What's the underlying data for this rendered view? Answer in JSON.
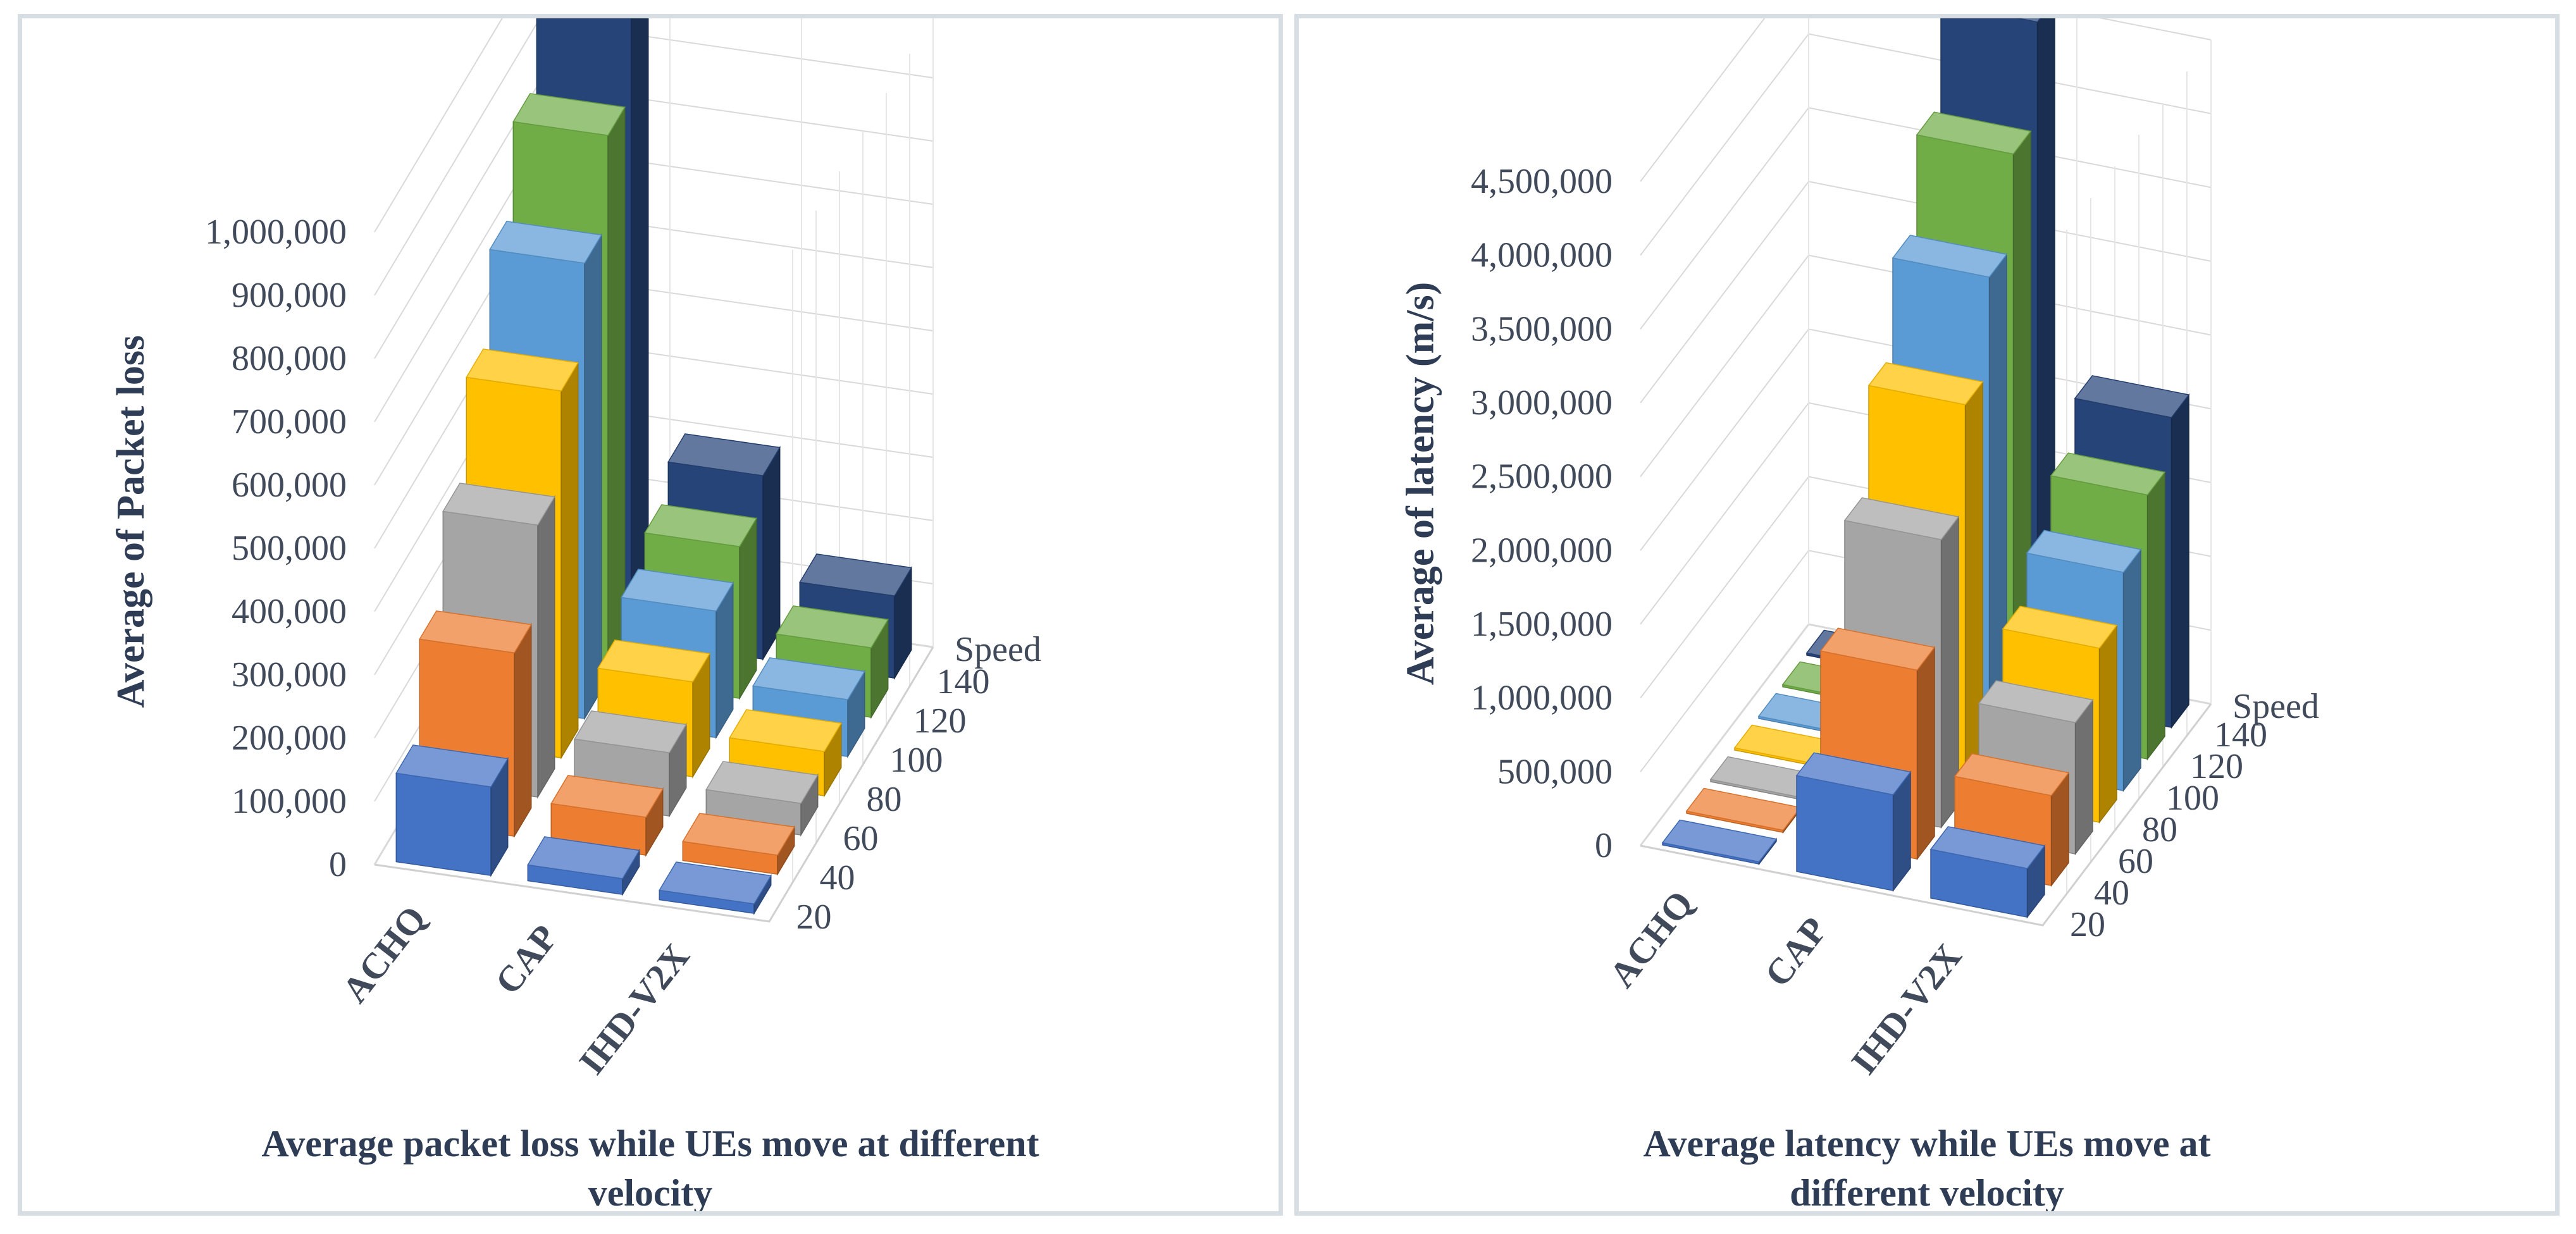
{
  "charts": [
    {
      "id": "left",
      "caption_line1": "Average packet loss while UEs move at different",
      "caption_line2": "velocity",
      "ylabel": "Average of Packet loss"
    },
    {
      "id": "right",
      "caption_line1": "Average latency while UEs move at",
      "caption_line2": "different velocity",
      "ylabel": "Average of latency (m/s)"
    }
  ],
  "chart_data": [
    {
      "type": "bar",
      "subtype": "3d-column",
      "title": "Average packet loss while UEs move at different velocity",
      "xlabel": "",
      "ylabel": "Average of Packet loss",
      "depth_label": "Speed",
      "categories": [
        "ACHQ",
        "CAP",
        "IHD-V2X"
      ],
      "ylim": [
        0,
        1000000
      ],
      "yticks": [
        "0",
        "100,000",
        "200,000",
        "300,000",
        "400,000",
        "500,000",
        "600,000",
        "700,000",
        "800,000",
        "900,000",
        "1,000,000"
      ],
      "series": [
        {
          "name": "20",
          "color": "#4472c4",
          "values": [
            140000,
            25000,
            15000
          ]
        },
        {
          "name": "40",
          "color": "#ed7d31",
          "values": [
            290000,
            60000,
            30000
          ]
        },
        {
          "name": "60",
          "color": "#a5a5a5",
          "values": [
            430000,
            100000,
            50000
          ]
        },
        {
          "name": "80",
          "color": "#ffc000",
          "values": [
            580000,
            150000,
            70000
          ]
        },
        {
          "name": "100",
          "color": "#5b9bd5",
          "values": [
            720000,
            200000,
            90000
          ]
        },
        {
          "name": "120",
          "color": "#70ad47",
          "values": [
            860000,
            240000,
            110000
          ]
        },
        {
          "name": "140",
          "color": "#264478",
          "values": [
            990000,
            290000,
            130000
          ]
        }
      ]
    },
    {
      "type": "bar",
      "subtype": "3d-column",
      "title": "Average latency while UEs move at different velocity",
      "xlabel": "",
      "ylabel": "Average of latency (m/s)",
      "depth_label": "Speed",
      "categories": [
        "ACHQ",
        "CAP",
        "IHD-V2X"
      ],
      "ylim": [
        0,
        4500000
      ],
      "yticks": [
        "0",
        "500,000",
        "1,000,000",
        "1,500,000",
        "2,000,000",
        "2,500,000",
        "3,000,000",
        "3,500,000",
        "4,000,000",
        "4,500,000"
      ],
      "series": [
        {
          "name": "20",
          "color": "#4472c4",
          "values": [
            15000,
            650000,
            330000
          ]
        },
        {
          "name": "40",
          "color": "#ed7d31",
          "values": [
            15000,
            1280000,
            610000
          ]
        },
        {
          "name": "60",
          "color": "#a5a5a5",
          "values": [
            15000,
            1950000,
            890000
          ]
        },
        {
          "name": "80",
          "color": "#ffc000",
          "values": [
            15000,
            2650000,
            1180000
          ]
        },
        {
          "name": "100",
          "color": "#5b9bd5",
          "values": [
            15000,
            3300000,
            1480000
          ]
        },
        {
          "name": "120",
          "color": "#70ad47",
          "values": [
            15000,
            3920000,
            1790000
          ]
        },
        {
          "name": "140",
          "color": "#264478",
          "values": [
            15000,
            4600000,
            2100000
          ]
        }
      ]
    }
  ]
}
